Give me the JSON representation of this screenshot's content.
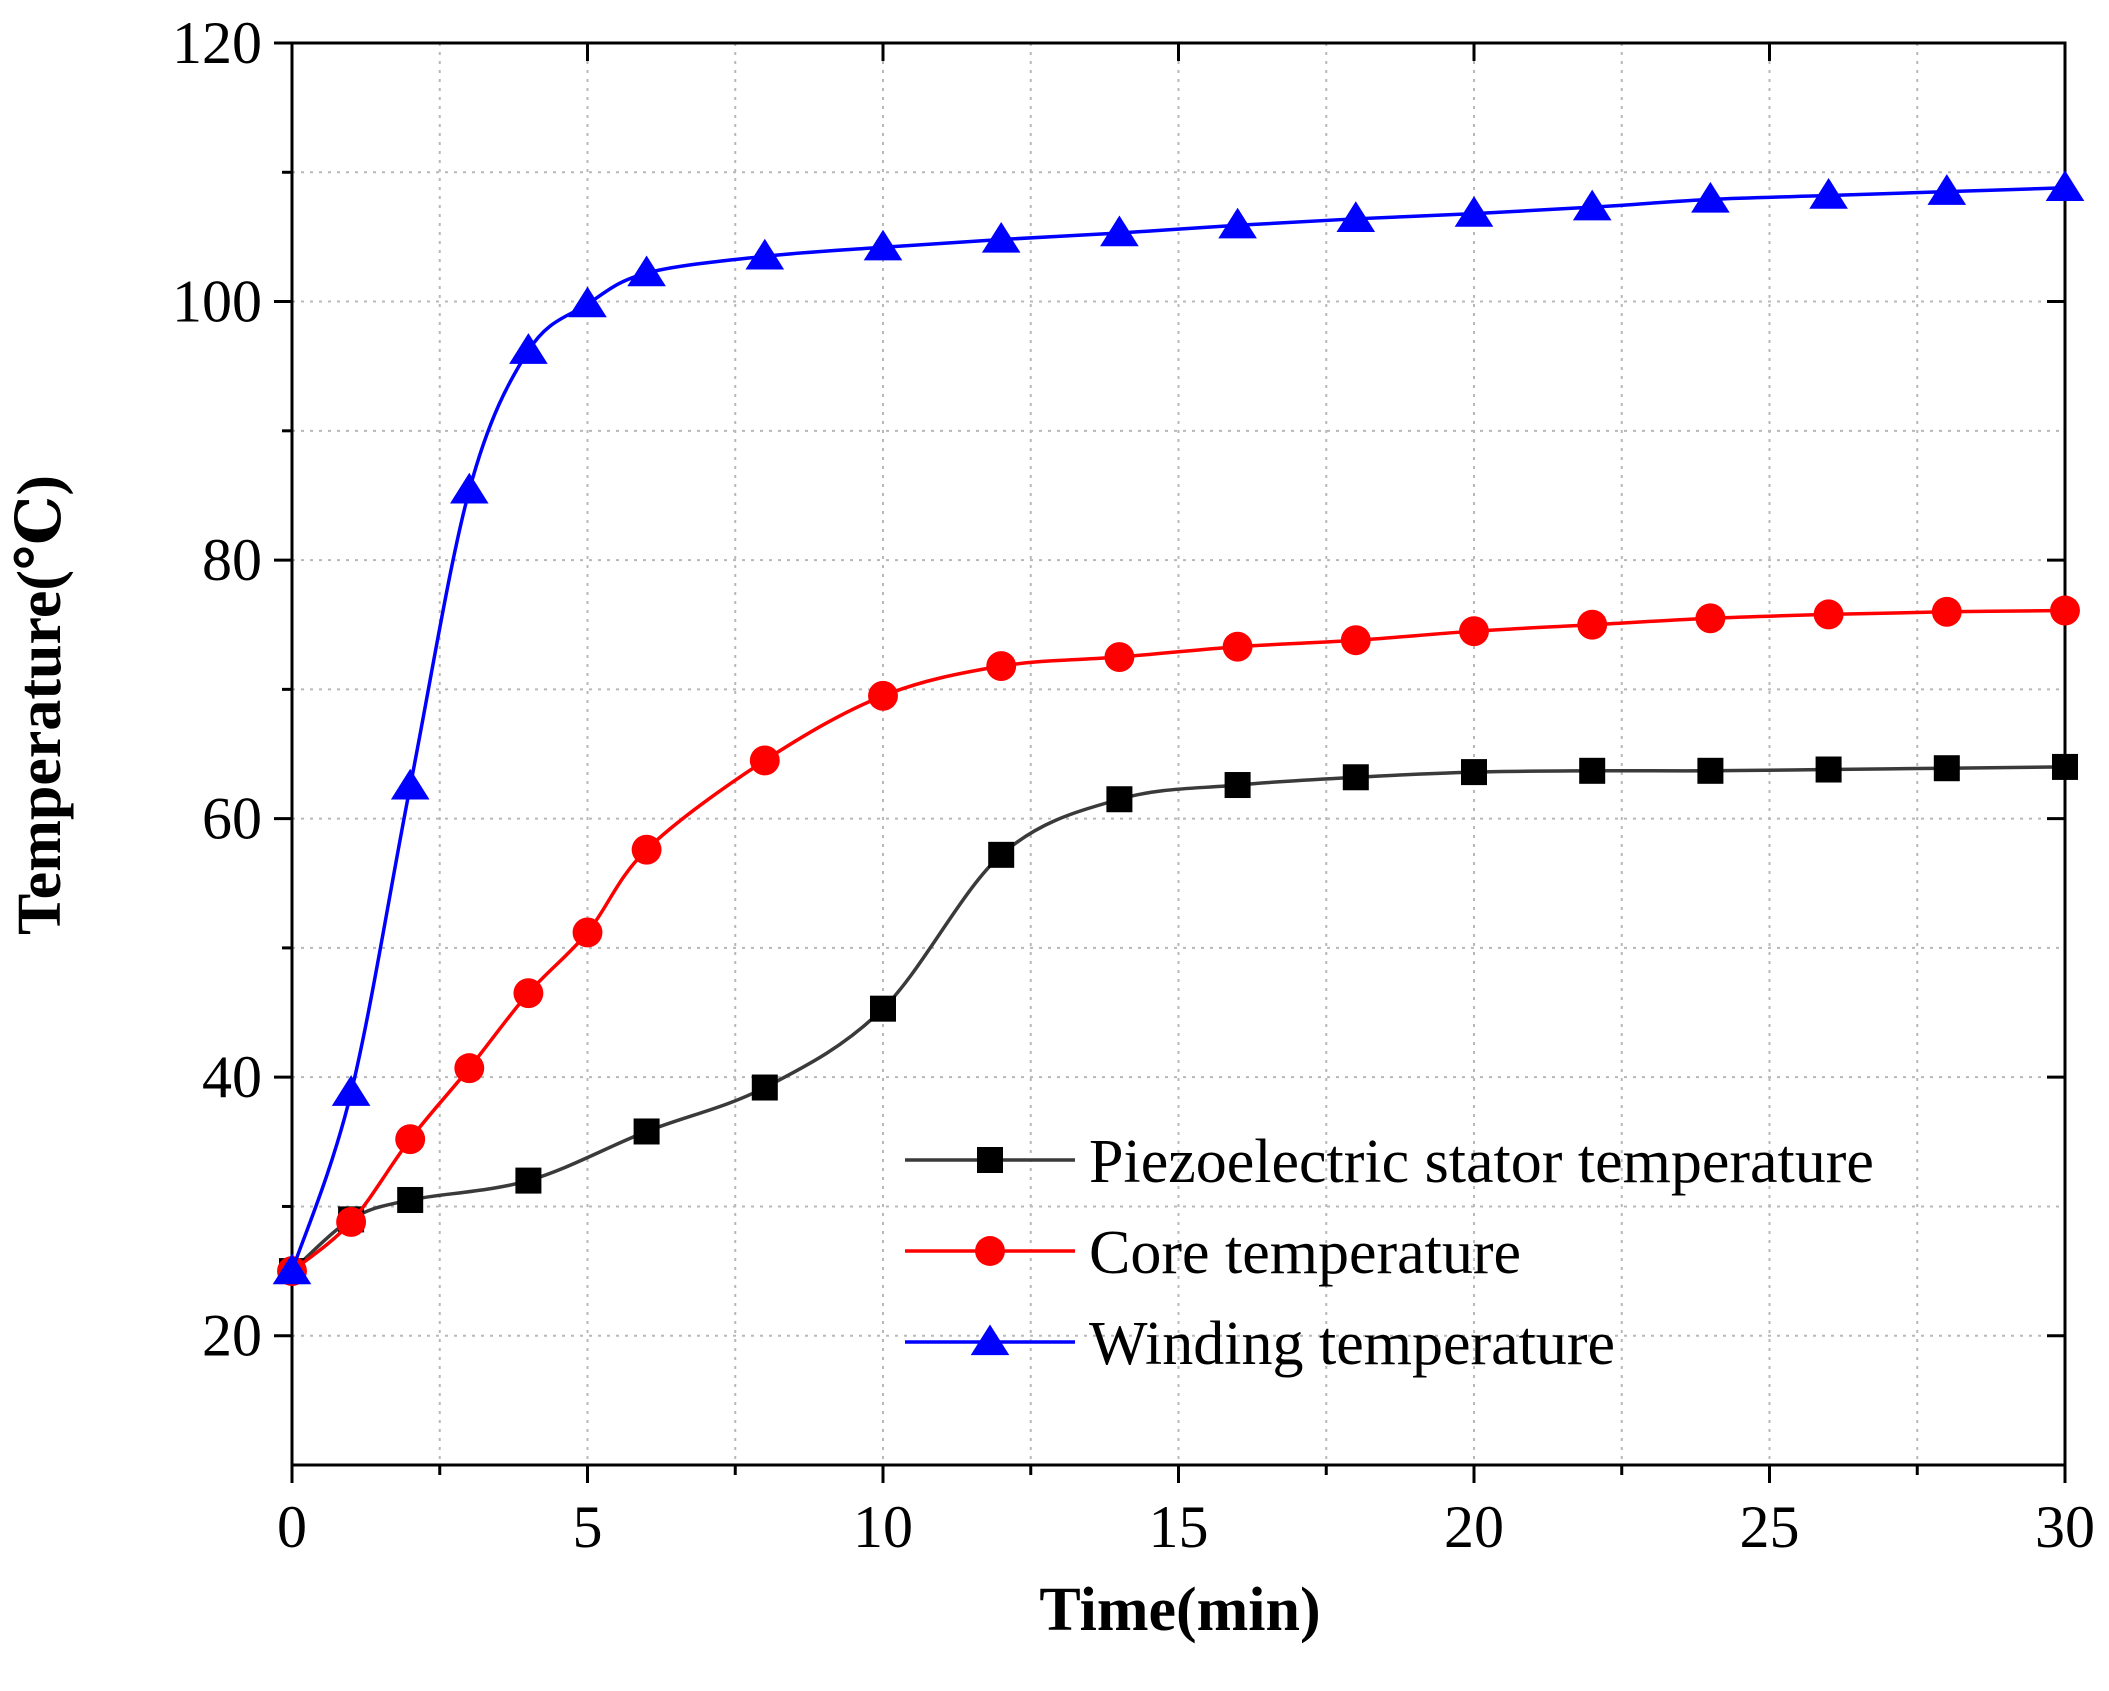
{
  "chart_data": {
    "type": "line",
    "xlabel": "Time(min)",
    "ylabel": "Temperature(℃)",
    "xlim": [
      0,
      30
    ],
    "ylim": [
      10,
      120
    ],
    "xticks": [
      0,
      5,
      10,
      15,
      20,
      25,
      30
    ],
    "xtick_labels": [
      "0",
      "5",
      "10",
      "15",
      "20",
      "25",
      "30"
    ],
    "yticks": [
      20,
      40,
      60,
      80,
      100,
      120
    ],
    "ytick_labels": [
      "20",
      "40",
      "60",
      "80",
      "100",
      "120"
    ],
    "grid": true,
    "legend_position": "bottom-right",
    "series": [
      {
        "name": "Piezoelectric stator temperature",
        "color": "#3a3a3a",
        "marker": "square",
        "x": [
          0,
          1,
          2,
          4,
          6,
          8,
          10,
          12,
          14,
          16,
          18,
          20,
          22,
          24,
          26,
          28,
          30
        ],
        "y": [
          25,
          29,
          30.5,
          32,
          35.8,
          39.2,
          45.3,
          57.2,
          61.5,
          62.6,
          63.2,
          63.6,
          63.7,
          63.7,
          63.8,
          63.9,
          64
        ]
      },
      {
        "name": "Core temperature",
        "color": "#ff0000",
        "marker": "circle",
        "x": [
          0,
          1,
          2,
          3,
          4,
          5,
          6,
          8,
          10,
          12,
          14,
          16,
          18,
          20,
          22,
          24,
          26,
          28,
          30
        ],
        "y": [
          25,
          28.8,
          35.2,
          40.7,
          46.5,
          51.2,
          57.6,
          64.5,
          69.5,
          71.8,
          72.5,
          73.3,
          73.8,
          74.5,
          75,
          75.5,
          75.8,
          76,
          76.1
        ]
      },
      {
        "name": "Winding temperature",
        "color": "#0000ff",
        "marker": "triangle",
        "x": [
          0,
          1,
          2,
          3,
          4,
          5,
          6,
          8,
          10,
          12,
          14,
          16,
          18,
          20,
          22,
          24,
          26,
          28,
          30
        ],
        "y": [
          25,
          38.8,
          62.5,
          85.4,
          96.2,
          99.8,
          102.2,
          103.5,
          104.2,
          104.8,
          105.3,
          105.9,
          106.4,
          106.8,
          107.3,
          107.9,
          108.2,
          108.5,
          108.8
        ]
      }
    ]
  }
}
